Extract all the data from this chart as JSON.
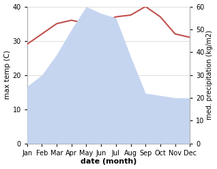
{
  "months": [
    "Jan",
    "Feb",
    "Mar",
    "Apr",
    "May",
    "Jun",
    "Jul",
    "Aug",
    "Sep",
    "Oct",
    "Nov",
    "Dec"
  ],
  "temperature": [
    29,
    32,
    35,
    36,
    35,
    35,
    37,
    37.5,
    40,
    37,
    32,
    31
  ],
  "precipitation": [
    25,
    30,
    39,
    50,
    60,
    57,
    55,
    38,
    22,
    21,
    20,
    20
  ],
  "temp_color": "#c0504d",
  "precip_fill_color": "#c5d5f0",
  "temp_ylim": [
    0,
    40
  ],
  "precip_ylim": [
    0,
    60
  ],
  "temp_yticks": [
    0,
    10,
    20,
    30,
    40
  ],
  "precip_yticks": [
    0,
    10,
    20,
    30,
    40,
    50,
    60
  ],
  "ylabel_left": "max temp (C)",
  "ylabel_right": "med. precipitation (kg/m2)",
  "xlabel": "date (month)",
  "bg_color": "#ffffff",
  "grid_color": "#d0d0d0"
}
